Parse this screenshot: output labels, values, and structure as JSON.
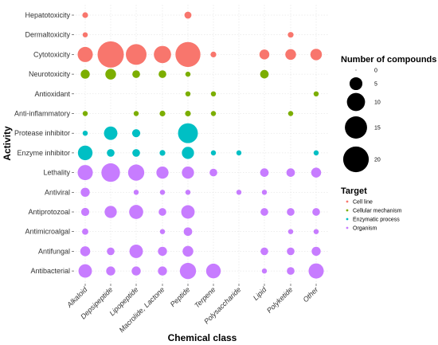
{
  "chart_data": {
    "type": "scatter",
    "xlabel": "Chemical class",
    "ylabel": "Activity",
    "x_categories": [
      "Alkaloid",
      "Depsipeptide",
      "Lipopeptide",
      "Macrolide, Lactone",
      "Peptide",
      "Terpene",
      "Polysaccharide",
      "Lipid",
      "Polyketide",
      "Other"
    ],
    "y_categories": [
      "Hepatotoxicity",
      "Dermaltoxicity",
      "Cytotoxicity",
      "Neurotoxicity",
      "Antioxidant",
      "Anti-inflammatory",
      "Protease inhibitor",
      "Enzyme inhibitor",
      "Lethality",
      "Antiviral",
      "Antiprotozoal",
      "Antimicroalgal",
      "Antifungal",
      "Antibacterial"
    ],
    "size_legend": {
      "title": "Number of compounds",
      "values": [
        0,
        5,
        10,
        15,
        20
      ],
      "labels": [
        "0",
        "5",
        "10",
        "15",
        "20"
      ]
    },
    "color_legend": {
      "title": "Target",
      "entries": [
        {
          "label": "Cell line",
          "color": "#F8766D"
        },
        {
          "label": "Cellular mechanism",
          "color": "#7CAE00"
        },
        {
          "label": "Enzymatic process",
          "color": "#00BFC4"
        },
        {
          "label": "Organism",
          "color": "#C77CFF"
        }
      ]
    },
    "grid": true,
    "legend_position": "right",
    "points": [
      {
        "x": "Alkaloid",
        "y": "Hepatotoxicity",
        "count": 1,
        "target": "Cell line"
      },
      {
        "x": "Peptide",
        "y": "Hepatotoxicity",
        "count": 1.5,
        "target": "Cell line"
      },
      {
        "x": "Alkaloid",
        "y": "Dermaltoxicity",
        "count": 0.8,
        "target": "Cell line"
      },
      {
        "x": "Polyketide",
        "y": "Dermaltoxicity",
        "count": 1,
        "target": "Cell line"
      },
      {
        "x": "Alkaloid",
        "y": "Cytotoxicity",
        "count": 7,
        "target": "Cell line"
      },
      {
        "x": "Depsipeptide",
        "y": "Cytotoxicity",
        "count": 21,
        "target": "Cell line"
      },
      {
        "x": "Lipopeptide",
        "y": "Cytotoxicity",
        "count": 13,
        "target": "Cell line"
      },
      {
        "x": "Macrolide, Lactone",
        "y": "Cytotoxicity",
        "count": 9,
        "target": "Cell line"
      },
      {
        "x": "Peptide",
        "y": "Cytotoxicity",
        "count": 19,
        "target": "Cell line"
      },
      {
        "x": "Terpene",
        "y": "Cytotoxicity",
        "count": 1,
        "target": "Cell line"
      },
      {
        "x": "Lipid",
        "y": "Cytotoxicity",
        "count": 3,
        "target": "Cell line"
      },
      {
        "x": "Polyketide",
        "y": "Cytotoxicity",
        "count": 3.5,
        "target": "Cell line"
      },
      {
        "x": "Other",
        "y": "Cytotoxicity",
        "count": 4,
        "target": "Cell line"
      },
      {
        "x": "Alkaloid",
        "y": "Neurotoxicity",
        "count": 2.5,
        "target": "Cellular mechanism"
      },
      {
        "x": "Depsipeptide",
        "y": "Neurotoxicity",
        "count": 3.5,
        "target": "Cellular mechanism"
      },
      {
        "x": "Lipopeptide",
        "y": "Neurotoxicity",
        "count": 1.8,
        "target": "Cellular mechanism"
      },
      {
        "x": "Macrolide, Lactone",
        "y": "Neurotoxicity",
        "count": 1.8,
        "target": "Cellular mechanism"
      },
      {
        "x": "Peptide",
        "y": "Neurotoxicity",
        "count": 0.8,
        "target": "Cellular mechanism"
      },
      {
        "x": "Lipid",
        "y": "Neurotoxicity",
        "count": 2.2,
        "target": "Cellular mechanism"
      },
      {
        "x": "Peptide",
        "y": "Antioxidant",
        "count": 0.8,
        "target": "Cellular mechanism"
      },
      {
        "x": "Terpene",
        "y": "Antioxidant",
        "count": 0.8,
        "target": "Cellular mechanism"
      },
      {
        "x": "Other",
        "y": "Antioxidant",
        "count": 0.8,
        "target": "Cellular mechanism"
      },
      {
        "x": "Alkaloid",
        "y": "Anti-inflammatory",
        "count": 0.8,
        "target": "Cellular mechanism"
      },
      {
        "x": "Lipopeptide",
        "y": "Anti-inflammatory",
        "count": 0.8,
        "target": "Cellular mechanism"
      },
      {
        "x": "Macrolide, Lactone",
        "y": "Anti-inflammatory",
        "count": 1,
        "target": "Cellular mechanism"
      },
      {
        "x": "Peptide",
        "y": "Anti-inflammatory",
        "count": 1,
        "target": "Cellular mechanism"
      },
      {
        "x": "Terpene",
        "y": "Anti-inflammatory",
        "count": 0.8,
        "target": "Cellular mechanism"
      },
      {
        "x": "Polyketide",
        "y": "Anti-inflammatory",
        "count": 0.8,
        "target": "Cellular mechanism"
      },
      {
        "x": "Alkaloid",
        "y": "Protease inhibitor",
        "count": 0.8,
        "target": "Enzymatic process"
      },
      {
        "x": "Depsipeptide",
        "y": "Protease inhibitor",
        "count": 5.5,
        "target": "Enzymatic process"
      },
      {
        "x": "Lipopeptide",
        "y": "Protease inhibitor",
        "count": 2,
        "target": "Enzymatic process"
      },
      {
        "x": "Peptide",
        "y": "Protease inhibitor",
        "count": 12,
        "target": "Enzymatic process"
      },
      {
        "x": "Alkaloid",
        "y": "Enzyme inhibitor",
        "count": 6.5,
        "target": "Enzymatic process"
      },
      {
        "x": "Depsipeptide",
        "y": "Enzyme inhibitor",
        "count": 1.8,
        "target": "Enzymatic process"
      },
      {
        "x": "Lipopeptide",
        "y": "Enzyme inhibitor",
        "count": 1.8,
        "target": "Enzymatic process"
      },
      {
        "x": "Macrolide, Lactone",
        "y": "Enzyme inhibitor",
        "count": 1,
        "target": "Enzymatic process"
      },
      {
        "x": "Peptide",
        "y": "Enzyme inhibitor",
        "count": 4.5,
        "target": "Enzymatic process"
      },
      {
        "x": "Terpene",
        "y": "Enzyme inhibitor",
        "count": 0.8,
        "target": "Enzymatic process"
      },
      {
        "x": "Polysaccharide",
        "y": "Enzyme inhibitor",
        "count": 0.8,
        "target": "Enzymatic process"
      },
      {
        "x": "Other",
        "y": "Enzyme inhibitor",
        "count": 0.8,
        "target": "Enzymatic process"
      },
      {
        "x": "Alkaloid",
        "y": "Lethality",
        "count": 7,
        "target": "Organism"
      },
      {
        "x": "Depsipeptide",
        "y": "Lethality",
        "count": 10.5,
        "target": "Organism"
      },
      {
        "x": "Lipopeptide",
        "y": "Lethality",
        "count": 8,
        "target": "Organism"
      },
      {
        "x": "Macrolide, Lactone",
        "y": "Lethality",
        "count": 4.5,
        "target": "Organism"
      },
      {
        "x": "Peptide",
        "y": "Lethality",
        "count": 4.5,
        "target": "Organism"
      },
      {
        "x": "Terpene",
        "y": "Lethality",
        "count": 1.8,
        "target": "Organism"
      },
      {
        "x": "Lipid",
        "y": "Lethality",
        "count": 2.2,
        "target": "Organism"
      },
      {
        "x": "Polyketide",
        "y": "Lethality",
        "count": 2.2,
        "target": "Organism"
      },
      {
        "x": "Other",
        "y": "Lethality",
        "count": 3,
        "target": "Organism"
      },
      {
        "x": "Alkaloid",
        "y": "Antiviral",
        "count": 2.5,
        "target": "Organism"
      },
      {
        "x": "Lipopeptide",
        "y": "Antiviral",
        "count": 0.8,
        "target": "Organism"
      },
      {
        "x": "Macrolide, Lactone",
        "y": "Antiviral",
        "count": 0.8,
        "target": "Organism"
      },
      {
        "x": "Peptide",
        "y": "Antiviral",
        "count": 0.8,
        "target": "Organism"
      },
      {
        "x": "Polysaccharide",
        "y": "Antiviral",
        "count": 0.8,
        "target": "Organism"
      },
      {
        "x": "Lipid",
        "y": "Antiviral",
        "count": 0.8,
        "target": "Organism"
      },
      {
        "x": "Alkaloid",
        "y": "Antiprotozoal",
        "count": 2,
        "target": "Organism"
      },
      {
        "x": "Depsipeptide",
        "y": "Antiprotozoal",
        "count": 4.5,
        "target": "Organism"
      },
      {
        "x": "Lipopeptide",
        "y": "Antiprotozoal",
        "count": 6,
        "target": "Organism"
      },
      {
        "x": "Macrolide, Lactone",
        "y": "Antiprotozoal",
        "count": 1.8,
        "target": "Organism"
      },
      {
        "x": "Peptide",
        "y": "Antiprotozoal",
        "count": 5.5,
        "target": "Organism"
      },
      {
        "x": "Lipid",
        "y": "Antiprotozoal",
        "count": 1.8,
        "target": "Organism"
      },
      {
        "x": "Polyketide",
        "y": "Antiprotozoal",
        "count": 1.8,
        "target": "Organism"
      },
      {
        "x": "Other",
        "y": "Antiprotozoal",
        "count": 1.8,
        "target": "Organism"
      },
      {
        "x": "Alkaloid",
        "y": "Antimicroalgal",
        "count": 1.2,
        "target": "Organism"
      },
      {
        "x": "Macrolide, Lactone",
        "y": "Antimicroalgal",
        "count": 0.8,
        "target": "Organism"
      },
      {
        "x": "Peptide",
        "y": "Antimicroalgal",
        "count": 2.2,
        "target": "Organism"
      },
      {
        "x": "Polyketide",
        "y": "Antimicroalgal",
        "count": 0.8,
        "target": "Organism"
      },
      {
        "x": "Other",
        "y": "Antimicroalgal",
        "count": 0.8,
        "target": "Organism"
      },
      {
        "x": "Alkaloid",
        "y": "Antifungal",
        "count": 3,
        "target": "Organism"
      },
      {
        "x": "Depsipeptide",
        "y": "Antifungal",
        "count": 1.8,
        "target": "Organism"
      },
      {
        "x": "Lipopeptide",
        "y": "Antifungal",
        "count": 5.5,
        "target": "Organism"
      },
      {
        "x": "Macrolide, Lactone",
        "y": "Antifungal",
        "count": 2.5,
        "target": "Organism"
      },
      {
        "x": "Peptide",
        "y": "Antifungal",
        "count": 3.5,
        "target": "Organism"
      },
      {
        "x": "Lipid",
        "y": "Antifungal",
        "count": 1.8,
        "target": "Organism"
      },
      {
        "x": "Polyketide",
        "y": "Antifungal",
        "count": 1.8,
        "target": "Organism"
      },
      {
        "x": "Other",
        "y": "Antifungal",
        "count": 2.5,
        "target": "Organism"
      },
      {
        "x": "Alkaloid",
        "y": "Antibacterial",
        "count": 5.5,
        "target": "Organism"
      },
      {
        "x": "Depsipeptide",
        "y": "Antibacterial",
        "count": 2.5,
        "target": "Organism"
      },
      {
        "x": "Lipopeptide",
        "y": "Antibacterial",
        "count": 2.5,
        "target": "Organism"
      },
      {
        "x": "Macrolide, Lactone",
        "y": "Antibacterial",
        "count": 2.5,
        "target": "Organism"
      },
      {
        "x": "Peptide",
        "y": "Antibacterial",
        "count": 8,
        "target": "Organism"
      },
      {
        "x": "Terpene",
        "y": "Antibacterial",
        "count": 6.5,
        "target": "Organism"
      },
      {
        "x": "Lipid",
        "y": "Antibacterial",
        "count": 0.8,
        "target": "Organism"
      },
      {
        "x": "Polyketide",
        "y": "Antibacterial",
        "count": 1.8,
        "target": "Organism"
      },
      {
        "x": "Other",
        "y": "Antibacterial",
        "count": 7,
        "target": "Organism"
      }
    ]
  }
}
